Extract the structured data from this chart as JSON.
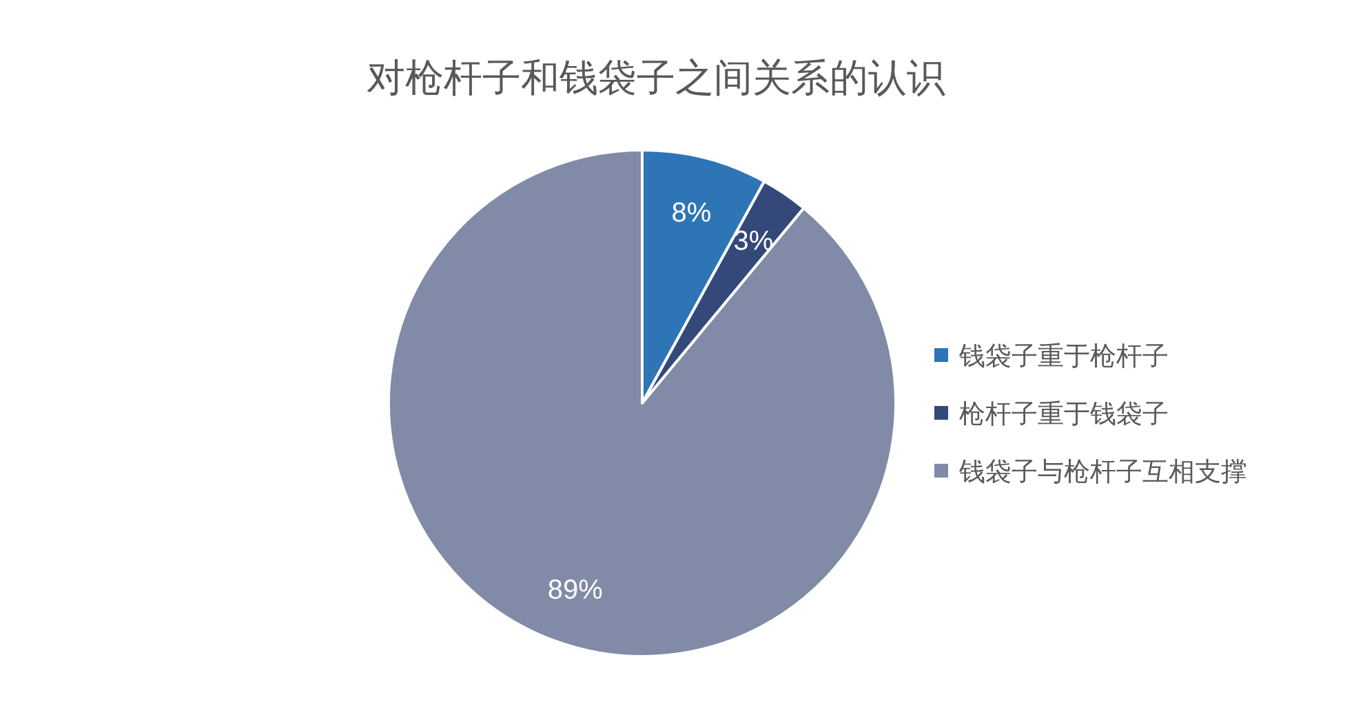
{
  "chart_data": {
    "type": "pie",
    "title": "对枪杆子和钱袋子之间关系的认识",
    "categories": [
      "钱袋子重于枪杆子",
      "枪杆子重于钱袋子",
      "钱袋子与枪杆子互相支撑"
    ],
    "values": [
      8,
      3,
      89
    ],
    "colors": [
      "#2e75b6",
      "#34497a",
      "#818aa6"
    ],
    "value_labels": [
      "8%",
      "3%",
      "89%"
    ],
    "legend": "right"
  }
}
